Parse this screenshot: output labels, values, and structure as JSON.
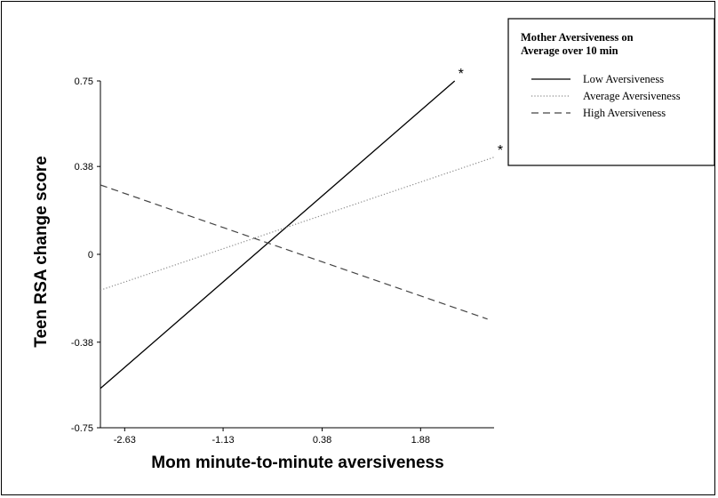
{
  "chart_data": {
    "type": "line",
    "title": "",
    "xlabel": "Mom minute-to-minute aversiveness",
    "ylabel": "Teen RSA change score",
    "x_ticks": [
      -2.63,
      -1.13,
      0.38,
      1.88
    ],
    "x_tick_labels": [
      "-2.63",
      "-1.13",
      "0.38",
      "1.88"
    ],
    "y_ticks": [
      -0.75,
      -0.38,
      0,
      0.38,
      0.75
    ],
    "y_tick_labels": [
      "-0.75",
      "-0.38",
      "0",
      "0.38",
      "0.75"
    ],
    "xlim": [
      -3.0,
      3.0
    ],
    "ylim": [
      -0.75,
      0.75
    ],
    "grid": false,
    "legend": {
      "title_line1": "Mother Aversiveness on",
      "title_line2": "Average over 10 min",
      "placement": "top-right"
    },
    "series": [
      {
        "name": "Low Aversiveness",
        "style": "solid",
        "color": "#000000",
        "x": [
          -3.0,
          2.4
        ],
        "y": [
          -0.58,
          0.75
        ],
        "significance": "*"
      },
      {
        "name": "Average Aversiveness",
        "style": "dotted",
        "color": "#8a8a8a",
        "x": [
          -3.0,
          3.0
        ],
        "y": [
          -0.155,
          0.42
        ],
        "significance": "*"
      },
      {
        "name": "High Aversiveness",
        "style": "dashed",
        "color": "#444444",
        "x": [
          -3.0,
          2.9
        ],
        "y": [
          0.3,
          -0.28
        ],
        "significance": ""
      }
    ]
  }
}
